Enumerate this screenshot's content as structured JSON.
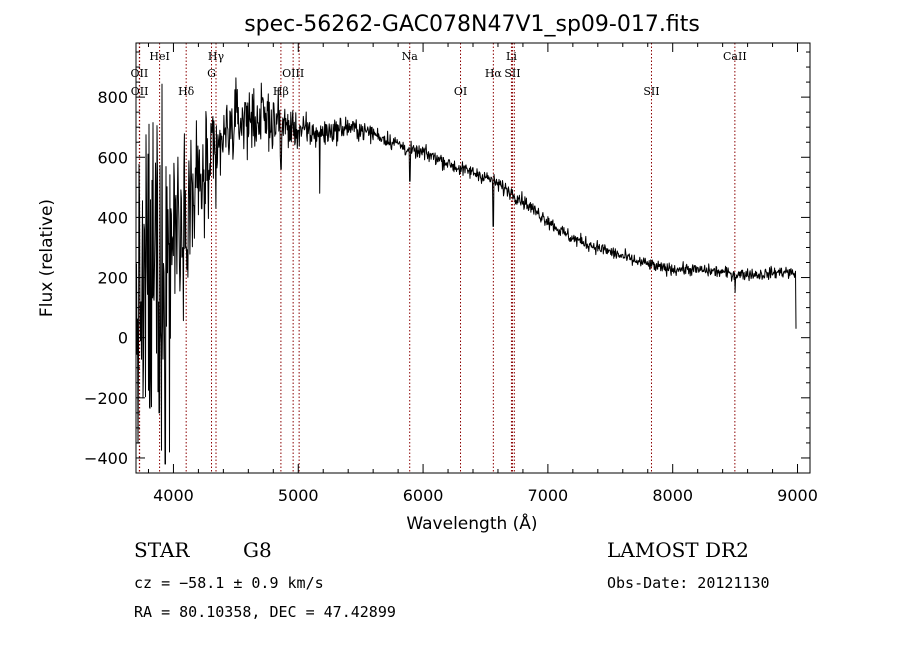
{
  "chart_data": {
    "type": "line",
    "title": "spec-56262-GAC078N47V1_sp09-017.fits",
    "xlabel": "Wavelength (Å)",
    "ylabel": "Flux (relative)",
    "xlim": [
      3700,
      9100
    ],
    "ylim": [
      -450,
      980
    ],
    "x_ticks": [
      4000,
      5000,
      6000,
      7000,
      8000,
      9000
    ],
    "y_ticks": [
      -400,
      -200,
      0,
      200,
      400,
      600,
      800
    ],
    "line_color": "#000000",
    "marker_color": "#8b0000",
    "spectral_lines": [
      {
        "label": "OII",
        "wavelength": 3727,
        "row": 2
      },
      {
        "label": "OII",
        "wavelength": 3729,
        "row": 3
      },
      {
        "label": "HeI",
        "wavelength": 3889,
        "row": 0
      },
      {
        "label": "Hδ",
        "wavelength": 4102,
        "row": 3
      },
      {
        "label": "Hγ",
        "wavelength": 4341,
        "row": 0
      },
      {
        "label": "G",
        "wavelength": 4305,
        "row": 2
      },
      {
        "label": "Hβ",
        "wavelength": 4861,
        "row": 3
      },
      {
        "label": "OIII",
        "wavelength": 4959,
        "row": 2
      },
      {
        "label": "OIII",
        "wavelength": 5007,
        "row": -1
      },
      {
        "label": "Na",
        "wavelength": 5893,
        "row": 0
      },
      {
        "label": "OI",
        "wavelength": 6300,
        "row": 3
      },
      {
        "label": "Hα",
        "wavelength": 6563,
        "row": 2
      },
      {
        "label": "Li",
        "wavelength": 6708,
        "row": 0
      },
      {
        "label": "SII",
        "wavelength": 6716,
        "row": 2
      },
      {
        "label": "SII",
        "wavelength": 6731,
        "row": -1
      },
      {
        "label": "SII",
        "wavelength": 7830,
        "row": 3
      },
      {
        "label": "CaII",
        "wavelength": 8498,
        "row": 0
      }
    ],
    "continuum": [
      [
        3700,
        80
      ],
      [
        3800,
        180
      ],
      [
        3900,
        300
      ],
      [
        4000,
        380
      ],
      [
        4100,
        440
      ],
      [
        4200,
        500
      ],
      [
        4300,
        560
      ],
      [
        4400,
        660
      ],
      [
        4500,
        720
      ],
      [
        4600,
        730
      ],
      [
        4700,
        730
      ],
      [
        4800,
        720
      ],
      [
        4900,
        700
      ],
      [
        5000,
        690
      ],
      [
        5100,
        680
      ],
      [
        5200,
        680
      ],
      [
        5300,
        690
      ],
      [
        5400,
        700
      ],
      [
        5500,
        690
      ],
      [
        5600,
        680
      ],
      [
        5700,
        660
      ],
      [
        5800,
        645
      ],
      [
        5900,
        620
      ],
      [
        6000,
        615
      ],
      [
        6100,
        600
      ],
      [
        6200,
        580
      ],
      [
        6300,
        560
      ],
      [
        6400,
        550
      ],
      [
        6500,
        535
      ],
      [
        6600,
        510
      ],
      [
        6700,
        485
      ],
      [
        6800,
        455
      ],
      [
        6900,
        420
      ],
      [
        7000,
        390
      ],
      [
        7100,
        355
      ],
      [
        7200,
        330
      ],
      [
        7300,
        315
      ],
      [
        7400,
        300
      ],
      [
        7500,
        285
      ],
      [
        7600,
        270
      ],
      [
        7700,
        255
      ],
      [
        7800,
        245
      ],
      [
        7900,
        232
      ],
      [
        8000,
        228
      ],
      [
        8100,
        228
      ],
      [
        8200,
        225
      ],
      [
        8300,
        222
      ],
      [
        8400,
        218
      ],
      [
        8500,
        210
      ],
      [
        8600,
        212
      ],
      [
        8700,
        210
      ],
      [
        8800,
        215
      ],
      [
        8900,
        220
      ],
      [
        8990,
        210
      ]
    ],
    "noise": [
      [
        3700,
        200
      ],
      [
        3800,
        320
      ],
      [
        3900,
        280
      ],
      [
        4000,
        160
      ],
      [
        4200,
        120
      ],
      [
        4400,
        60
      ],
      [
        4800,
        50
      ],
      [
        5000,
        30
      ],
      [
        5500,
        15
      ],
      [
        6000,
        12
      ],
      [
        7000,
        12
      ],
      [
        8000,
        10
      ],
      [
        9000,
        10
      ]
    ],
    "features": [
      {
        "x": 3720,
        "y": -60
      },
      {
        "x": 3760,
        "y": -90
      },
      {
        "x": 3820,
        "y": -120
      },
      {
        "x": 3885,
        "y": -250
      },
      {
        "x": 3933,
        "y": -420
      },
      {
        "x": 3968,
        "y": -380
      },
      {
        "x": 4102,
        "y": 300
      },
      {
        "x": 4340,
        "y": 430
      },
      {
        "x": 4861,
        "y": 560
      },
      {
        "x": 5172,
        "y": 480
      },
      {
        "x": 5893,
        "y": 520
      },
      {
        "x": 6563,
        "y": 370
      },
      {
        "x": 8500,
        "y": 150
      },
      {
        "x": 8990,
        "y": 30
      }
    ]
  },
  "info": {
    "object_class": "STAR",
    "subclass": "G8",
    "survey": "LAMOST DR2",
    "cz": "cz = −58.1 ± 0.9 km/s",
    "obs_date": "Obs-Date: 20121130",
    "coords": "RA =  80.10358, DEC =  47.42899"
  }
}
